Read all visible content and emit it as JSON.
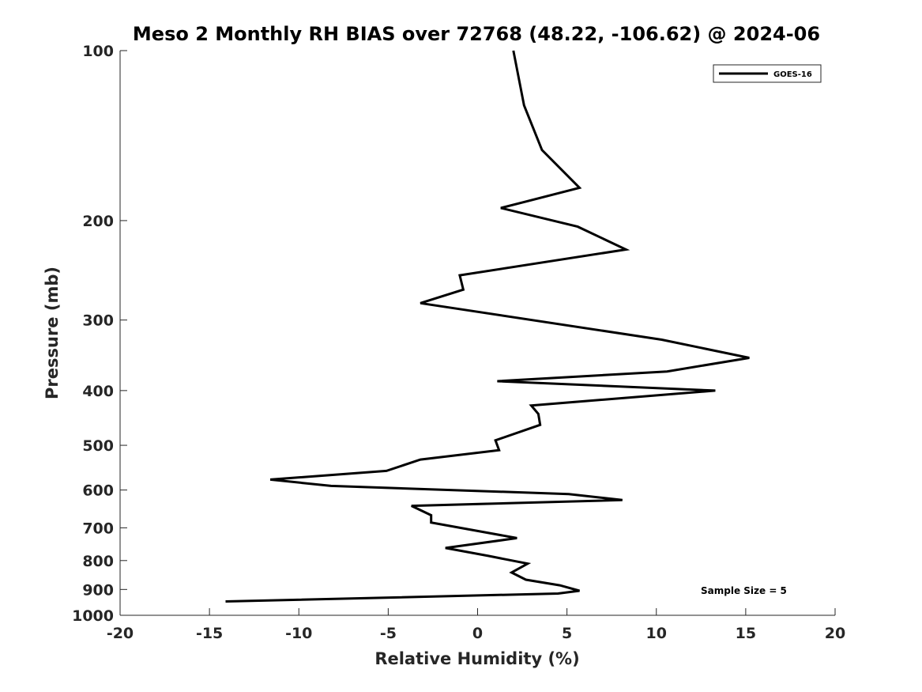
{
  "chart_data": {
    "type": "line",
    "title": "Meso 2 Monthly RH BIAS over 72768 (48.22, -106.62) @ 2024-06",
    "xlabel": "Relative Humidity (%)",
    "ylabel": "Pressure (mb)",
    "xlim": [
      -20,
      20
    ],
    "ylim": [
      100,
      1000
    ],
    "yscale": "log",
    "yreversed": true,
    "xticks": [
      -20,
      -15,
      -10,
      -5,
      0,
      5,
      10,
      15,
      20
    ],
    "xtick_labels": [
      "-20",
      "-15",
      "-10",
      "-5",
      "0",
      "5",
      "10",
      "15",
      "20"
    ],
    "yticks": [
      100,
      200,
      300,
      400,
      500,
      600,
      700,
      800,
      900,
      1000
    ],
    "ytick_labels": [
      "100",
      "200",
      "300",
      "400",
      "500",
      "600",
      "700",
      "800",
      "900",
      "1000"
    ],
    "grid": false,
    "legend_position": "top-right",
    "annotation": "Sample Size = 5",
    "series": [
      {
        "name": "GOES-16",
        "color": "#000000",
        "x": [
          2.0,
          2.6,
          3.6,
          5.7,
          1.3,
          5.6,
          8.3,
          -1.0,
          -0.8,
          -3.2,
          10.3,
          15.2,
          10.6,
          1.1,
          13.3,
          3.0,
          3.4,
          3.5,
          1.0,
          1.2,
          -3.2,
          -5.1,
          -11.6,
          -8.2,
          5.1,
          8.1,
          -3.7,
          -2.6,
          -2.6,
          2.2,
          -1.8,
          0.6,
          2.8,
          1.9,
          2.7,
          4.6,
          5.7,
          4.5,
          -14.1
        ],
        "y": [
          100,
          125,
          150,
          175,
          190,
          205,
          225,
          250,
          265,
          280,
          325,
          350,
          370,
          385,
          400,
          425,
          440,
          460,
          490,
          510,
          530,
          555,
          575,
          590,
          610,
          625,
          640,
          665,
          685,
          730,
          760,
          785,
          810,
          840,
          865,
          885,
          905,
          915,
          945
        ]
      }
    ]
  }
}
